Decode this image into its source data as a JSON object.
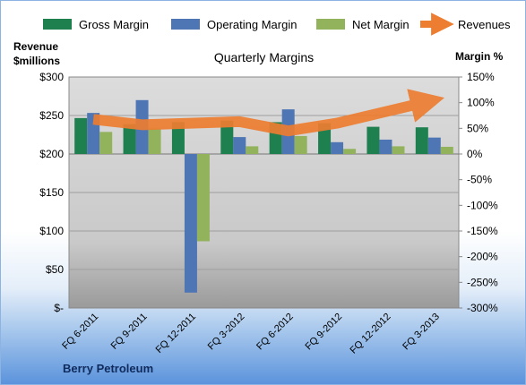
{
  "chart_data": {
    "type": "bar",
    "title": "Quarterly Margins",
    "categories": [
      "FQ 6-2011",
      "FQ 9-2011",
      "FQ 12-2011",
      "FQ 3-2012",
      "FQ 6-2012",
      "FQ 9-2012",
      "FQ 12-2012",
      "FQ 3-2013"
    ],
    "series": [
      {
        "name": "Gross Margin",
        "axis": "right",
        "color": "#1e7f4f",
        "values": [
          70,
          58,
          62,
          65,
          62,
          60,
          53,
          52
        ]
      },
      {
        "name": "Operating Margin",
        "axis": "right",
        "color": "#4f76b4",
        "values": [
          80,
          105,
          -270,
          33,
          87,
          23,
          28,
          32
        ]
      },
      {
        "name": "Net Margin",
        "axis": "right",
        "color": "#92b35c",
        "values": [
          43,
          50,
          -170,
          15,
          35,
          10,
          15,
          14
        ]
      },
      {
        "name": "Revenues",
        "type": "line",
        "axis": "left",
        "color": "#ed7d31",
        "values": [
          245,
          238,
          240,
          242,
          230,
          240,
          255,
          270
        ]
      }
    ],
    "y_left": {
      "label": "Revenue $millions",
      "range": [
        0,
        300
      ],
      "ticks": [
        "$-",
        "$50",
        "$100",
        "$150",
        "$200",
        "$250",
        "$300"
      ]
    },
    "y_right": {
      "label": "Margin %",
      "range": [
        -300,
        150
      ],
      "ticks": [
        "-300%",
        "-250%",
        "-200%",
        "-150%",
        "-100%",
        "-50%",
        "0%",
        "50%",
        "100%",
        "150%"
      ]
    },
    "grid": true,
    "legend": "top"
  },
  "footer": {
    "company": "Berry Petroleum"
  }
}
